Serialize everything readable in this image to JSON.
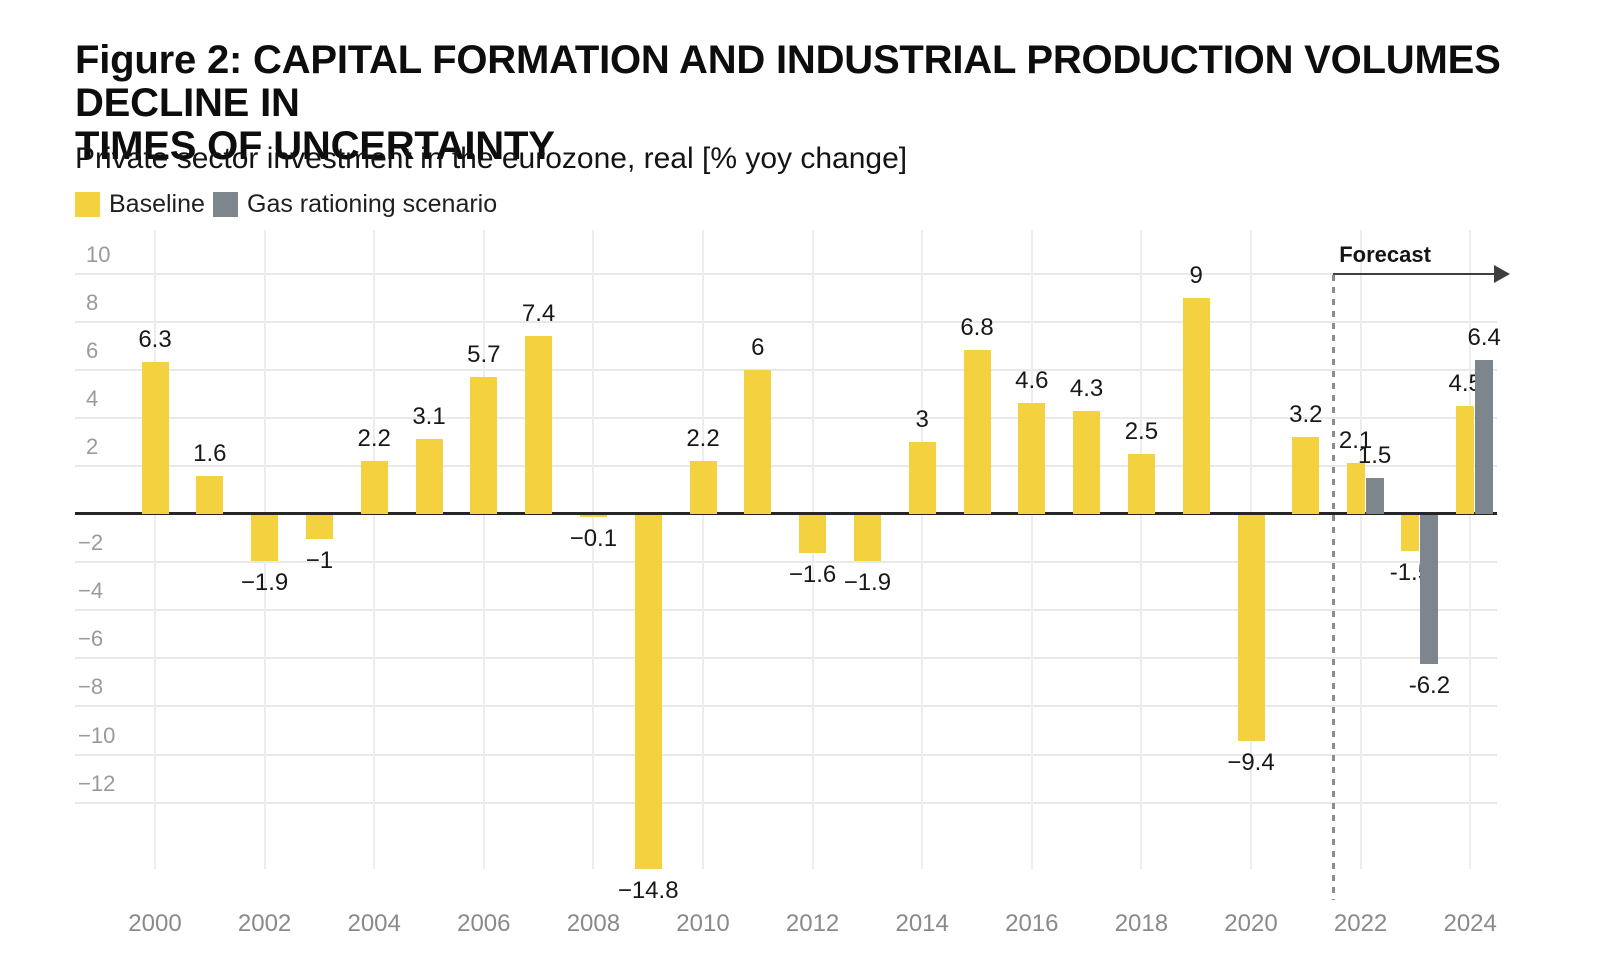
{
  "figure": {
    "title_line1": "Figure 2: CAPITAL FORMATION AND INDUSTRIAL PRODUCTION VOLUMES DECLINE IN",
    "title_line2": "TIMES OF UNCERTAINTY",
    "subtitle": "Private sector investment in the eurozone, real [% yoy change]"
  },
  "legend": {
    "items": [
      {
        "label": "Baseline",
        "color": "#F3D13F"
      },
      {
        "label": "Gas rationing scenario",
        "color": "#7E868D"
      }
    ]
  },
  "annotations": {
    "forecast_label": "Forecast"
  },
  "chart_data": {
    "type": "bar",
    "title": "Figure 2: CAPITAL FORMATION AND INDUSTRIAL PRODUCTION VOLUMES DECLINE IN TIMES OF UNCERTAINTY",
    "subtitle": "Private sector investment in the eurozone, real [% yoy change]",
    "xlabel": "",
    "ylabel": "% yoy change",
    "x": [
      2000,
      2001,
      2002,
      2003,
      2004,
      2005,
      2006,
      2007,
      2008,
      2009,
      2010,
      2011,
      2012,
      2013,
      2014,
      2015,
      2016,
      2017,
      2018,
      2019,
      2020,
      2021,
      2022,
      2023,
      2024
    ],
    "series": [
      {
        "name": "Baseline",
        "color": "#F3D13F",
        "values": [
          6.3,
          1.6,
          -1.9,
          -1,
          2.2,
          3.1,
          5.7,
          7.4,
          -0.1,
          -14.8,
          2.2,
          6,
          -1.6,
          -1.9,
          3,
          6.8,
          4.6,
          4.3,
          2.5,
          9,
          -9.4,
          3.2,
          2.1,
          -1.5,
          4.5
        ],
        "labels": [
          "6.3",
          "1.6",
          "−1.9",
          "−1",
          "2.2",
          "3.1",
          "5.7",
          "7.4",
          "−0.1",
          "−14.8",
          "2.2",
          "6",
          "−1.6",
          "−1.9",
          "3",
          "6.8",
          "4.6",
          "4.3",
          "2.5",
          "9",
          "−9.4",
          "3.2",
          "2.1",
          "-1.5",
          "4.5"
        ]
      },
      {
        "name": "Gas rationing scenario",
        "color": "#7E868D",
        "values": [
          null,
          null,
          null,
          null,
          null,
          null,
          null,
          null,
          null,
          null,
          null,
          null,
          null,
          null,
          null,
          null,
          null,
          null,
          null,
          null,
          null,
          null,
          1.5,
          -6.2,
          6.4
        ],
        "labels": [
          null,
          null,
          null,
          null,
          null,
          null,
          null,
          null,
          null,
          null,
          null,
          null,
          null,
          null,
          null,
          null,
          null,
          null,
          null,
          null,
          null,
          null,
          "1.5",
          "-6.2",
          "6.4"
        ]
      }
    ],
    "x_tick_labels": [
      "2000",
      "2002",
      "2004",
      "2006",
      "2008",
      "2010",
      "2012",
      "2014",
      "2016",
      "2018",
      "2020",
      "2022",
      "2024"
    ],
    "x_tick_years": [
      2000,
      2002,
      2004,
      2006,
      2008,
      2010,
      2012,
      2014,
      2016,
      2018,
      2020,
      2022,
      2024
    ],
    "y_tick_values": [
      10,
      8,
      6,
      4,
      2,
      -2,
      -4,
      -6,
      -8,
      -10,
      -12
    ],
    "y_tick_labels": [
      "10",
      "8",
      "6",
      "4",
      "2",
      "−2",
      "−4",
      "−6",
      "−8",
      "−10",
      "−12"
    ],
    "ylim": [
      -14.8,
      11.8
    ],
    "grid": true,
    "legend_position": "top-left",
    "forecast_boundary_x": 2021.5,
    "forecast_label": "Forecast"
  }
}
